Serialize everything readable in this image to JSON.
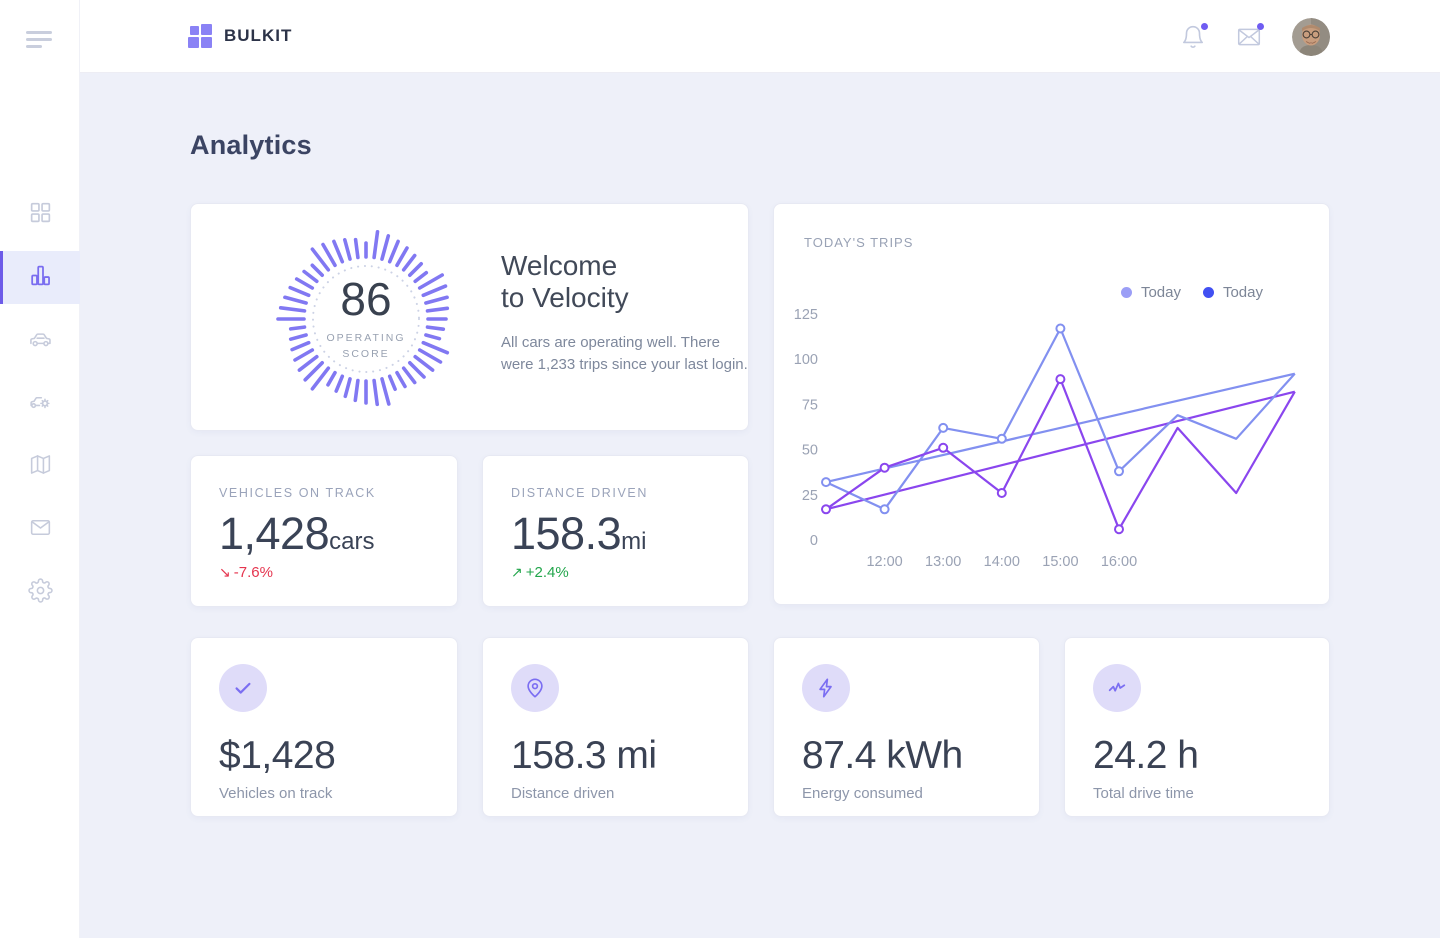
{
  "header": {
    "brand": "BULKIT",
    "notification_badge_color": "#6f5cf2"
  },
  "sidebar": {
    "items": [
      {
        "icon": "dashboard-grid-icon",
        "active": false
      },
      {
        "icon": "bar-chart-icon",
        "active": true
      },
      {
        "icon": "car-icon",
        "active": false
      },
      {
        "icon": "car-service-icon",
        "active": false
      },
      {
        "icon": "map-icon",
        "active": false
      },
      {
        "icon": "mail-icon",
        "active": false
      },
      {
        "icon": "settings-icon",
        "active": false
      }
    ]
  },
  "page_title": "Analytics",
  "welcome": {
    "score": "86",
    "score_label_line1": "OPERATING",
    "score_label_line2": "SCORE",
    "title_line1": "Welcome",
    "title_line2": "to Velocity",
    "body": "All cars are operating well. There were 1,233 trips since your last login.",
    "gauge_tick_color": "#8178f2"
  },
  "stats": [
    {
      "label": "VEHICLES ON TRACK",
      "value": "1,428",
      "suffix": "cars",
      "trend_arrow": "↘",
      "trend": "-7.6%",
      "trend_dir": "down",
      "trend_color": "#e5344e"
    },
    {
      "label": "DISTANCE DRIVEN",
      "value": "158.3",
      "suffix": "mi",
      "trend_arrow": "↗",
      "trend": "+2.4%",
      "trend_dir": "up",
      "trend_color": "#23a64c"
    }
  ],
  "chart_card": {
    "title": "TODAY'S TRIPS",
    "legend": [
      {
        "label": "Today",
        "color": "#9b9ef6"
      },
      {
        "label": "Today",
        "color": "#4150f2"
      }
    ]
  },
  "chart_data": {
    "type": "line",
    "title": "TODAY'S TRIPS",
    "x_labels": [
      "",
      "12:00",
      "13:00",
      "14:00",
      "15:00",
      "16:00",
      "",
      "",
      ""
    ],
    "y_ticks": [
      0,
      25,
      50,
      75,
      100,
      125
    ],
    "ylim": [
      0,
      125
    ],
    "grid": false,
    "legend_position": "top-right",
    "series": [
      {
        "name": "Today",
        "color": "#8290f0",
        "values": [
          32,
          17,
          62,
          56,
          117,
          38,
          69,
          56,
          92
        ],
        "markers_on": [
          0,
          1,
          2,
          3,
          4,
          5
        ]
      },
      {
        "name": "Today",
        "color": "#8a46ee",
        "values": [
          17,
          40,
          51,
          26,
          89,
          6,
          62,
          26,
          82
        ],
        "markers_on": [
          0,
          1,
          2,
          3,
          4,
          5
        ]
      }
    ],
    "trend_lines": [
      {
        "color": "#8290f0",
        "from": 32,
        "to": 92
      },
      {
        "color": "#8a46ee",
        "from": 17,
        "to": 82
      }
    ],
    "axis_label_color": "#9aa2b4"
  },
  "mini_cards": [
    {
      "icon": "check-icon",
      "value": "$1,428",
      "label": "Vehicles on track"
    },
    {
      "icon": "map-pin-icon",
      "value": "158.3 mi",
      "label": "Distance driven"
    },
    {
      "icon": "bolt-icon",
      "value": "87.4 kWh",
      "label": "Energy consumed"
    },
    {
      "icon": "activity-icon",
      "value": "24.2 h",
      "label": "Total drive time"
    }
  ],
  "colors": {
    "brand_purple": "#8a82f5",
    "active_nav": "#7a6df0",
    "background": "#eef0f9",
    "card_border": "#e7e9f3",
    "heading_text": "#3b4463",
    "muted_label": "#9aa3ba"
  }
}
